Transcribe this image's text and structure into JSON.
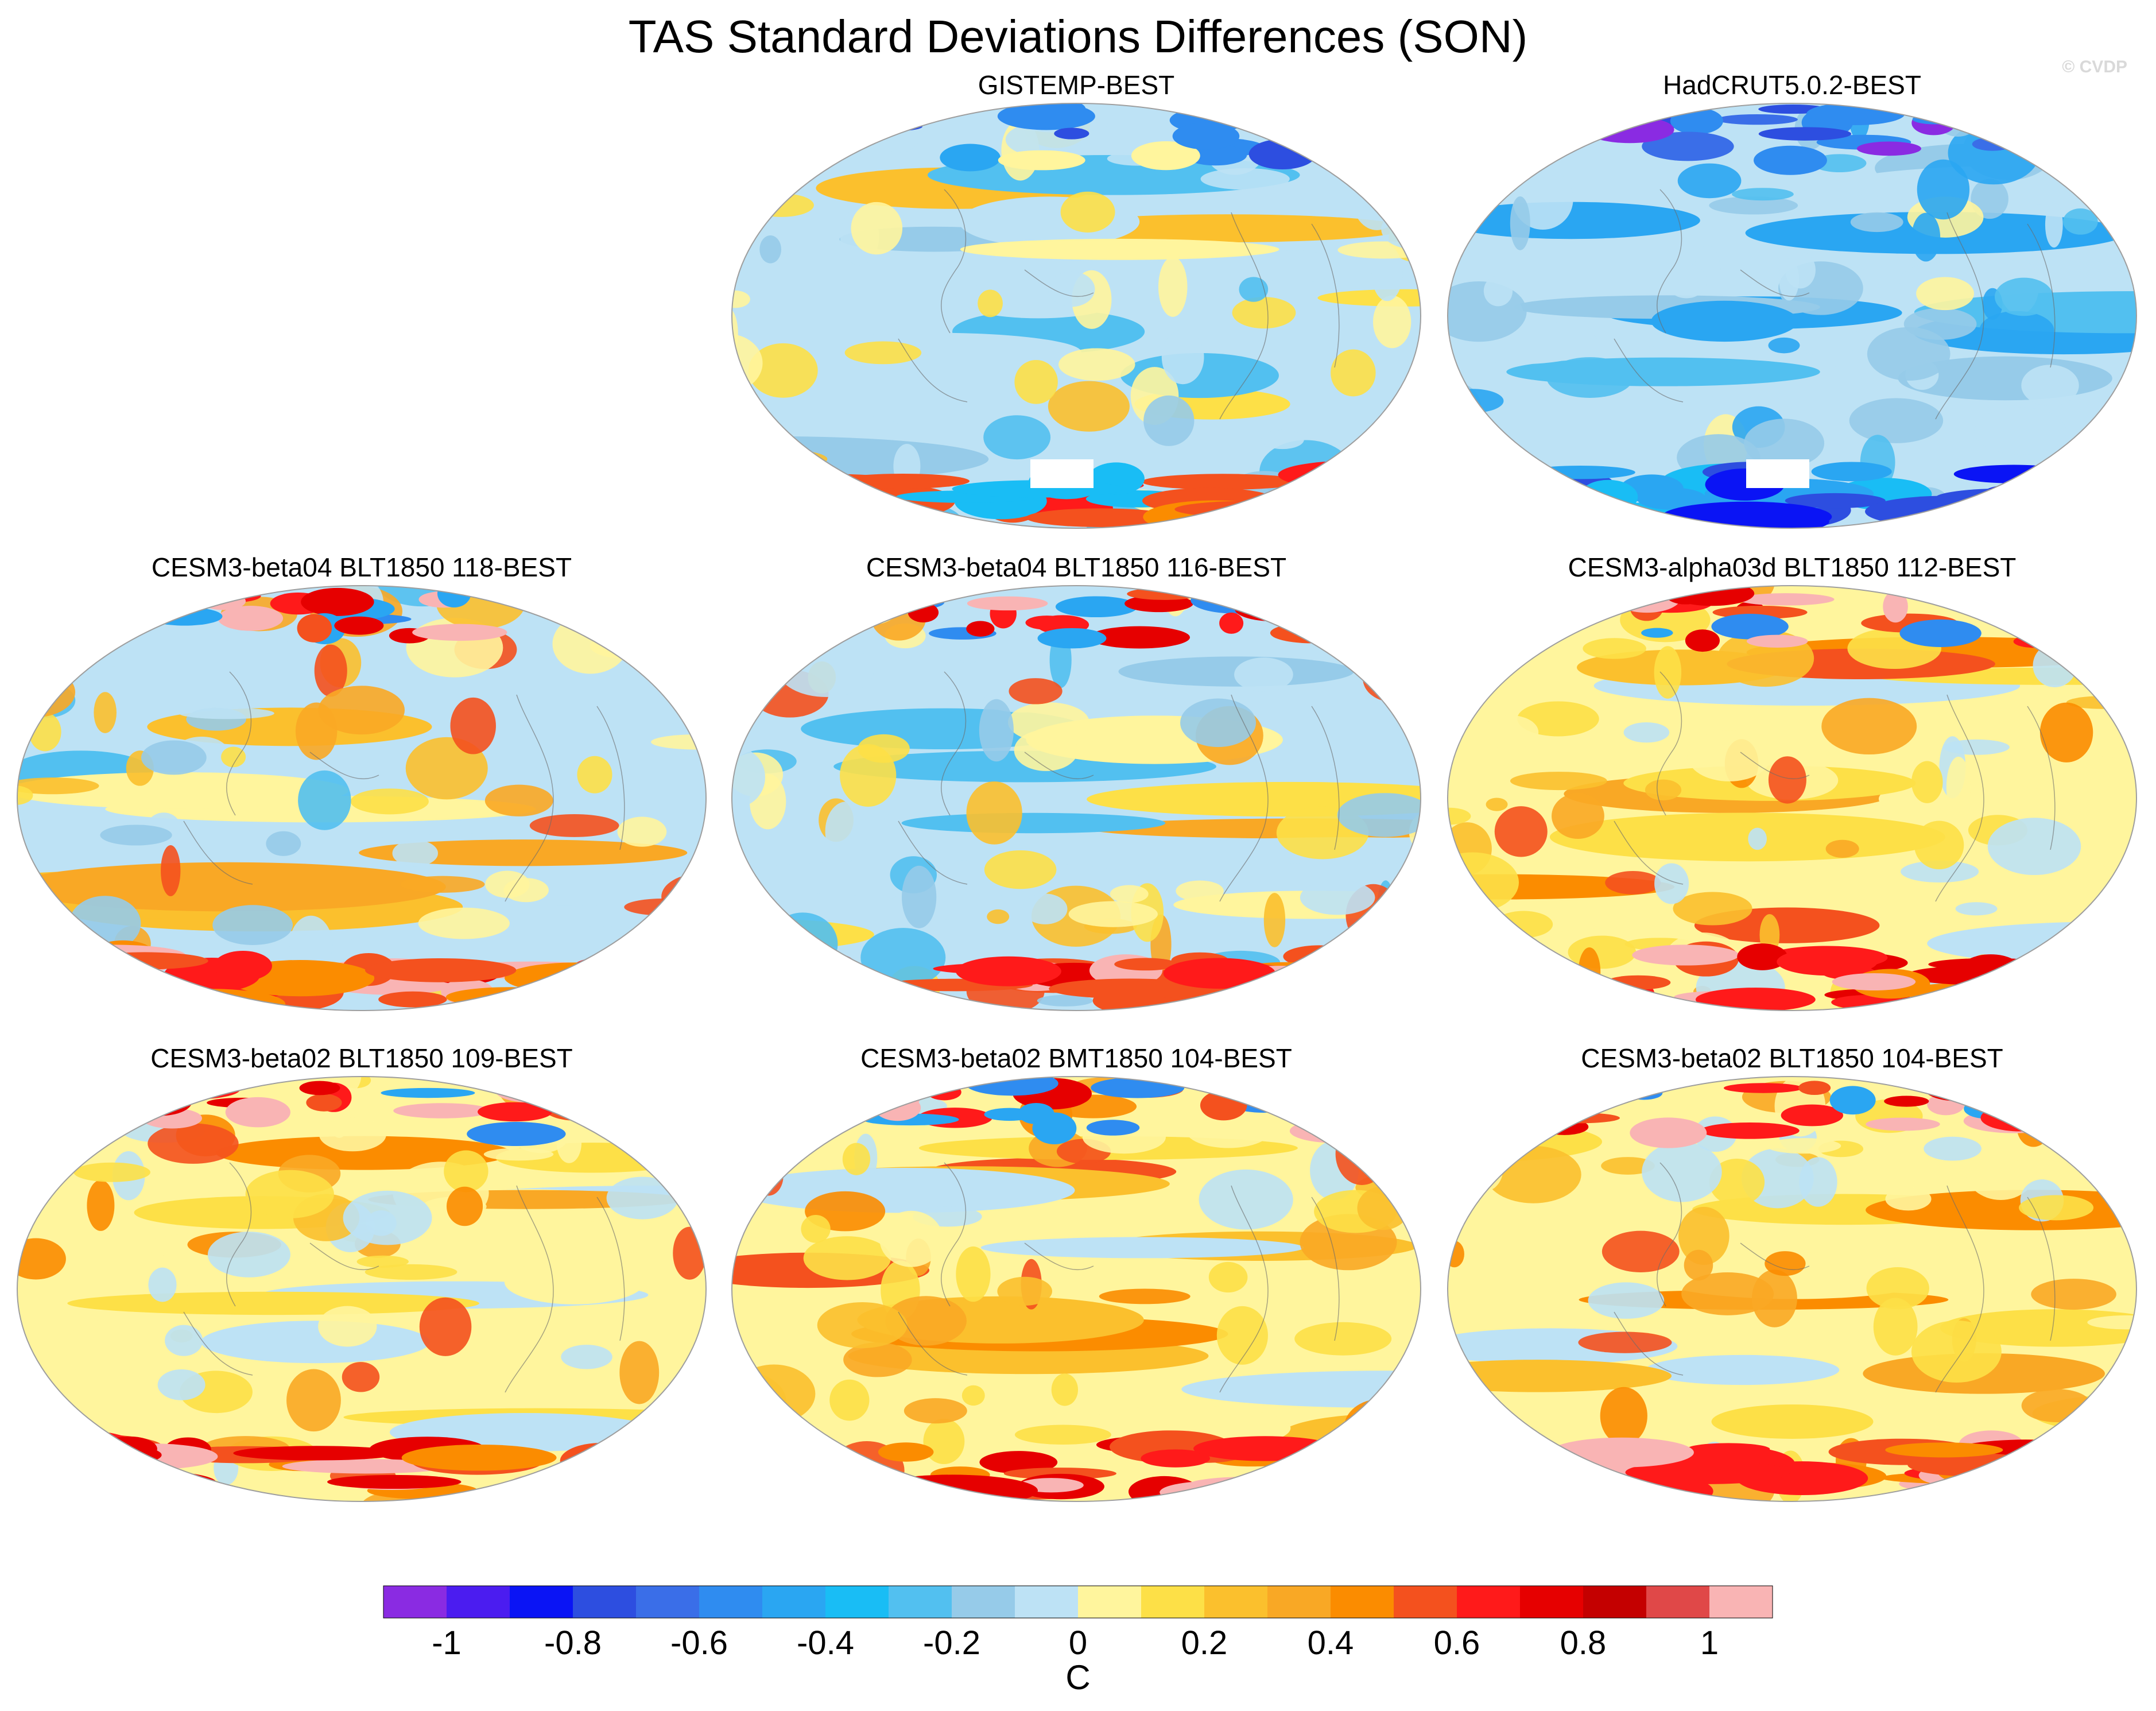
{
  "figure": {
    "title": "TAS Standard Deviations Differences (SON)",
    "watermark": "© CVDP"
  },
  "chart_data": {
    "type": "heatmap",
    "title": "TAS Standard Deviations Differences (SON)",
    "projection": "Robinson-like global map",
    "panels": [
      {
        "label": "GISTEMP-BEST",
        "row": 1,
        "col": 3,
        "dominant_sign": "mixed"
      },
      {
        "label": "HadCRUT5.0.2-BEST",
        "row": 1,
        "col": 4,
        "dominant_sign": "negative"
      },
      {
        "label": "CESM3-beta04 BLT1850 118-BEST",
        "row": 2,
        "col": 1,
        "dominant_sign": "mixed-positive"
      },
      {
        "label": "CESM3-beta04 BLT1850 116-BEST",
        "row": 2,
        "col": 2,
        "dominant_sign": "mixed-positive"
      },
      {
        "label": "CESM3-alpha03d BLT1850 112-BEST",
        "row": 2,
        "col": 3,
        "dominant_sign": "positive"
      },
      {
        "label": "CESM3-beta02 BLT1850 109-BEST",
        "row": 3,
        "col": 1,
        "dominant_sign": "positive"
      },
      {
        "label": "CESM3-beta02 BMT1850 104-BEST",
        "row": 3,
        "col": 2,
        "dominant_sign": "positive"
      },
      {
        "label": "CESM3-beta02 BLT1850 104-BEST",
        "row": 3,
        "col": 3,
        "dominant_sign": "positive"
      }
    ],
    "colorbar": {
      "levels": [
        -1.1,
        -1.0,
        -0.9,
        -0.8,
        -0.7,
        -0.6,
        -0.5,
        -0.4,
        -0.3,
        -0.2,
        -0.1,
        0,
        0.1,
        0.2,
        0.3,
        0.4,
        0.5,
        0.6,
        0.7,
        0.8,
        0.9,
        1.0,
        1.1
      ],
      "colors": [
        "#8a2be2",
        "#4b1cf0",
        "#0a14f5",
        "#2d4ee0",
        "#3a6ee8",
        "#2f8cf0",
        "#2aa6f2",
        "#19bdf5",
        "#52c0f0",
        "#96cbe9",
        "#bde2f5",
        "#fff59d",
        "#fde047",
        "#fbc02d",
        "#f9a825",
        "#fb8c00",
        "#f4511e",
        "#ff1a1a",
        "#e60000",
        "#c40000",
        "#e04848",
        "#f9b4b4"
      ],
      "tick_labels": [
        "-1",
        "-0.8",
        "-0.6",
        "-0.4",
        "-0.2",
        "0",
        "0.2",
        "0.4",
        "0.6",
        "0.8",
        "1"
      ],
      "tick_values": [
        -1,
        -0.8,
        -0.6,
        -0.4,
        -0.2,
        0,
        0.2,
        0.4,
        0.6,
        0.8,
        1
      ],
      "unit": "C"
    }
  }
}
